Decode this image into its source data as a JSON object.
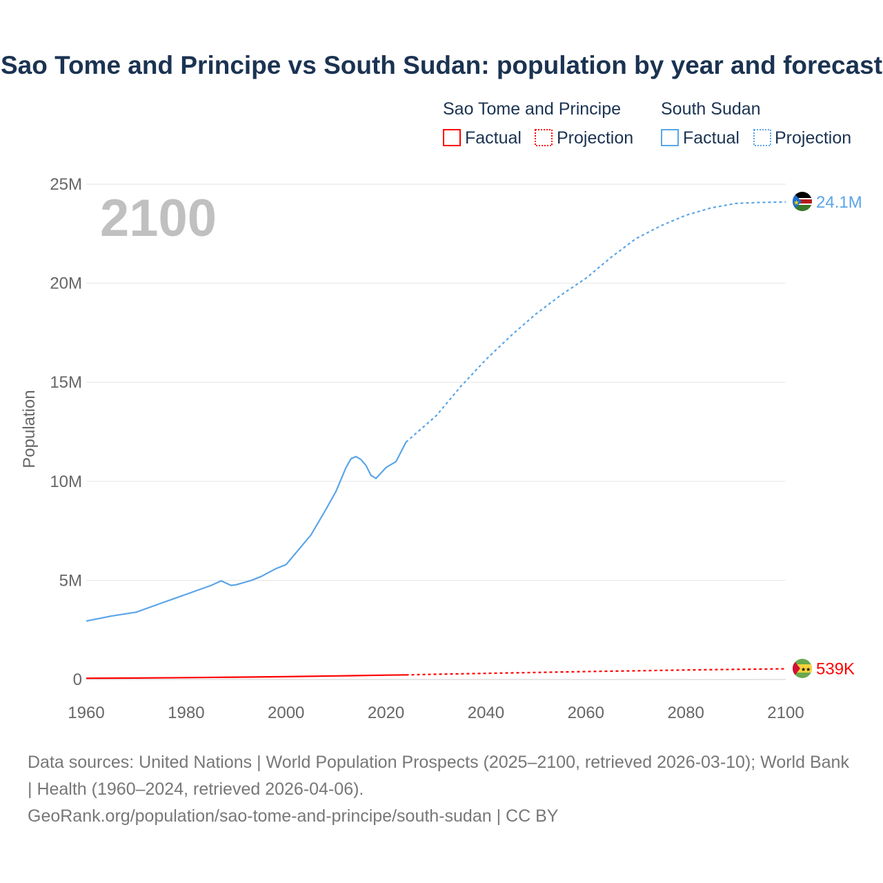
{
  "title": "Sao Tome and Principe vs South Sudan: population by year and forecast",
  "year_watermark": "2100",
  "legend": {
    "groups": [
      {
        "name": "Sao Tome and Principe",
        "factual": "Factual",
        "projection": "Projection",
        "color": "#ff0000"
      },
      {
        "name": "South Sudan",
        "factual": "Factual",
        "projection": "Projection",
        "color": "#5aa5e8"
      }
    ]
  },
  "source_lines": [
    "Data sources: United Nations | World Population Prospects (2025–2100, retrieved 2026-03-10); World Bank | Health (1960–2024, retrieved 2026-04-06).",
    "GeoRank.org/population/sao-tome-and-principe/south-sudan | CC BY"
  ],
  "chart_data": {
    "type": "line",
    "title": "Sao Tome and Principe vs South Sudan: population by year and forecast",
    "xlabel": "",
    "ylabel": "Population",
    "xlim": [
      1960,
      2100
    ],
    "ylim": [
      0,
      25000000
    ],
    "x_ticks": [
      1960,
      1980,
      2000,
      2020,
      2040,
      2060,
      2080,
      2100
    ],
    "x_tick_labels": [
      "1960",
      "1980",
      "2000",
      "2020",
      "2040",
      "2060",
      "2080",
      "2100"
    ],
    "y_ticks": [
      0,
      5000000,
      10000000,
      15000000,
      20000000,
      25000000
    ],
    "y_tick_labels": [
      "0",
      "5M",
      "10M",
      "15M",
      "20M",
      "25M"
    ],
    "grid": true,
    "legend_position": "top-right",
    "series": [
      {
        "name": "South Sudan",
        "color": "#5aa5e8",
        "end_label": "24.1M",
        "flag": "south-sudan",
        "factual": {
          "x": [
            1960,
            1965,
            1970,
            1975,
            1980,
            1985,
            1987,
            1989,
            1990,
            1993,
            1995,
            1998,
            2000,
            2003,
            2005,
            2008,
            2010,
            2012,
            2013,
            2014,
            2015,
            2016,
            2017,
            2018,
            2020,
            2022,
            2024
          ],
          "y": [
            2950000,
            3200000,
            3400000,
            3850000,
            4300000,
            4750000,
            4980000,
            4750000,
            4780000,
            5000000,
            5200000,
            5600000,
            5800000,
            6700000,
            7300000,
            8600000,
            9500000,
            10700000,
            11150000,
            11250000,
            11100000,
            10800000,
            10300000,
            10150000,
            10700000,
            11000000,
            11980000
          ]
        },
        "projection": {
          "x": [
            2024,
            2030,
            2035,
            2040,
            2045,
            2050,
            2055,
            2060,
            2065,
            2070,
            2075,
            2080,
            2085,
            2090,
            2095,
            2100
          ],
          "y": [
            11980000,
            13300000,
            14800000,
            16150000,
            17350000,
            18450000,
            19400000,
            20250000,
            21300000,
            22250000,
            22900000,
            23430000,
            23800000,
            24030000,
            24080000,
            24100000
          ]
        }
      },
      {
        "name": "Sao Tome and Principe",
        "color": "#ff0000",
        "end_label": "539K",
        "flag": "sao-tome-and-principe",
        "factual": {
          "x": [
            1960,
            1970,
            1980,
            1990,
            2000,
            2010,
            2020,
            2024
          ],
          "y": [
            64000,
            74000,
            95000,
            117000,
            142000,
            180000,
            218000,
            235000
          ]
        },
        "projection": {
          "x": [
            2024,
            2030,
            2040,
            2050,
            2060,
            2070,
            2080,
            2090,
            2100
          ],
          "y": [
            235000,
            265000,
            310000,
            355000,
            400000,
            440000,
            480000,
            512000,
            539000
          ]
        }
      }
    ]
  }
}
